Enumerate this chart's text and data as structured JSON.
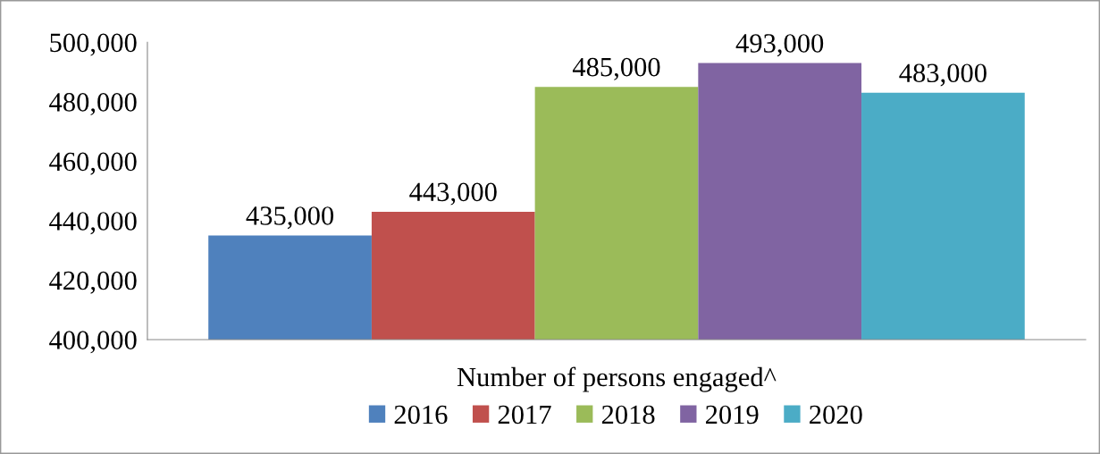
{
  "chart_data": {
    "type": "bar",
    "categories": [
      "Number of persons engaged^"
    ],
    "series": [
      {
        "name": "2016",
        "color": "#4f81bd",
        "values": [
          435000
        ],
        "value_labels": [
          "435,000"
        ]
      },
      {
        "name": "2017",
        "color": "#c0504d",
        "values": [
          443000
        ],
        "value_labels": [
          "443,000"
        ]
      },
      {
        "name": "2018",
        "color": "#9bbb59",
        "values": [
          485000
        ],
        "value_labels": [
          "485,000"
        ]
      },
      {
        "name": "2019",
        "color": "#8064a2",
        "values": [
          493000
        ],
        "value_labels": [
          "493,000"
        ]
      },
      {
        "name": "2020",
        "color": "#4bacc6",
        "values": [
          483000
        ],
        "value_labels": [
          "483,000"
        ]
      }
    ],
    "ylim": [
      400000,
      500000
    ],
    "yticks": [
      {
        "value": 400000,
        "label": "400,000"
      },
      {
        "value": 420000,
        "label": "420,000"
      },
      {
        "value": 440000,
        "label": "440,000"
      },
      {
        "value": 460000,
        "label": "460,000"
      },
      {
        "value": 480000,
        "label": "480,000"
      },
      {
        "value": 500000,
        "label": "500,000"
      }
    ],
    "grid": false,
    "legend": "bottom"
  }
}
